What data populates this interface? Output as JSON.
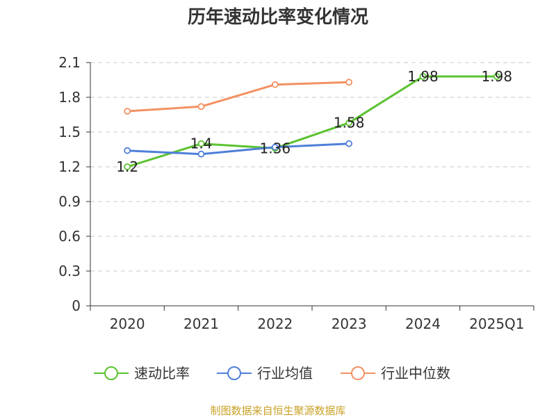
{
  "chart_data": {
    "type": "line",
    "title": "历年速动比率变化情况",
    "categories": [
      "2020",
      "2021",
      "2022",
      "2023",
      "2024",
      "2025Q1"
    ],
    "ylim": [
      0,
      2.1
    ],
    "yticks": [
      "0",
      "0.3",
      "0.6",
      "0.9",
      "1.2",
      "1.5",
      "1.8",
      "2.1"
    ],
    "grid": true,
    "legend_position": "bottom",
    "series": [
      {
        "name": "速动比率",
        "color": "#5bc230",
        "values": [
          1.2,
          1.4,
          1.36,
          1.58,
          1.98,
          1.98
        ],
        "labels": [
          "1.2",
          "1.4",
          "1.36",
          "1.58",
          "1.98",
          "1.98"
        ]
      },
      {
        "name": "行业均值",
        "color": "#4f7fd9",
        "values": [
          1.34,
          1.31,
          1.37,
          1.4,
          null,
          null
        ]
      },
      {
        "name": "行业中位数",
        "color": "#f39162",
        "values": [
          1.68,
          1.72,
          1.91,
          1.93,
          null,
          null
        ]
      }
    ]
  },
  "footer": {
    "text": "制图数据来自恒生聚源数据库",
    "color": "#c9a227"
  }
}
